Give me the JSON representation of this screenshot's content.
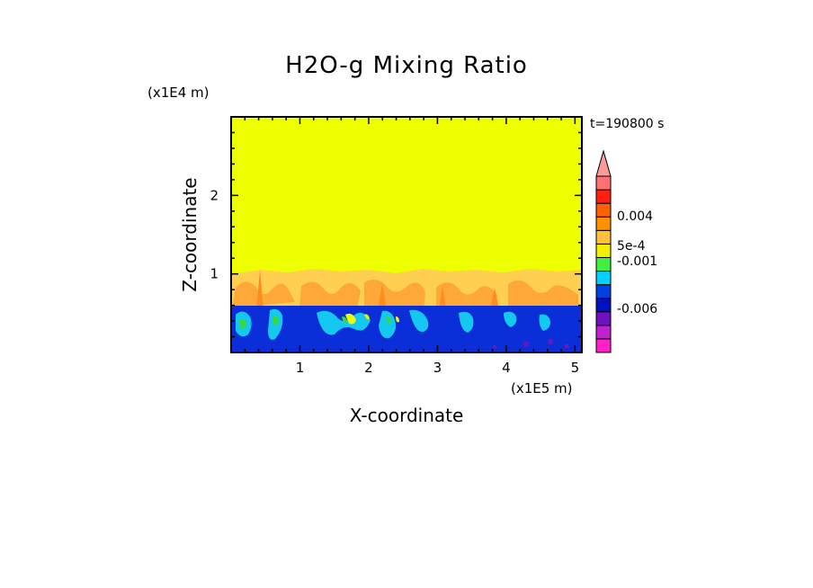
{
  "chart_data": {
    "type": "heatmap",
    "title": "H2O-g Mixing Ratio",
    "xlabel": "X-coordinate",
    "ylabel": "Z-coordinate",
    "x_units": "(x1E5 m)",
    "y_units": "(x1E4 m)",
    "time_label": "t=190800 s",
    "xlim": [
      0,
      5.1
    ],
    "ylim": [
      0,
      3.0
    ],
    "x_ticks": [
      1,
      2,
      3,
      4,
      5
    ],
    "y_ticks": [
      1,
      2
    ],
    "colorbar": {
      "labels": [
        {
          "text": "0.004",
          "value": 0.004
        },
        {
          "text": "5e-4",
          "value": 0.0005
        },
        {
          "text": "-0.001",
          "value": -0.001
        },
        {
          "text": "-0.006",
          "value": -0.006
        }
      ],
      "colors": [
        "#ff20c8",
        "#c020d0",
        "#7010c0",
        "#0010c0",
        "#0040e0",
        "#00d0ff",
        "#40f040",
        "#f0f000",
        "#ffc040",
        "#ff9000",
        "#ff6000",
        "#ff2010",
        "#ff7070",
        "#ff9a9a"
      ]
    },
    "regions": [
      {
        "name": "upper",
        "z_range": [
          1.05,
          3.0
        ],
        "color": "#eeff00"
      },
      {
        "name": "transition",
        "z_range": [
          0.6,
          1.05
        ],
        "color": "#ffc84a"
      },
      {
        "name": "lower",
        "z_range": [
          0,
          0.6
        ],
        "color": "#0a2ed8"
      }
    ]
  }
}
